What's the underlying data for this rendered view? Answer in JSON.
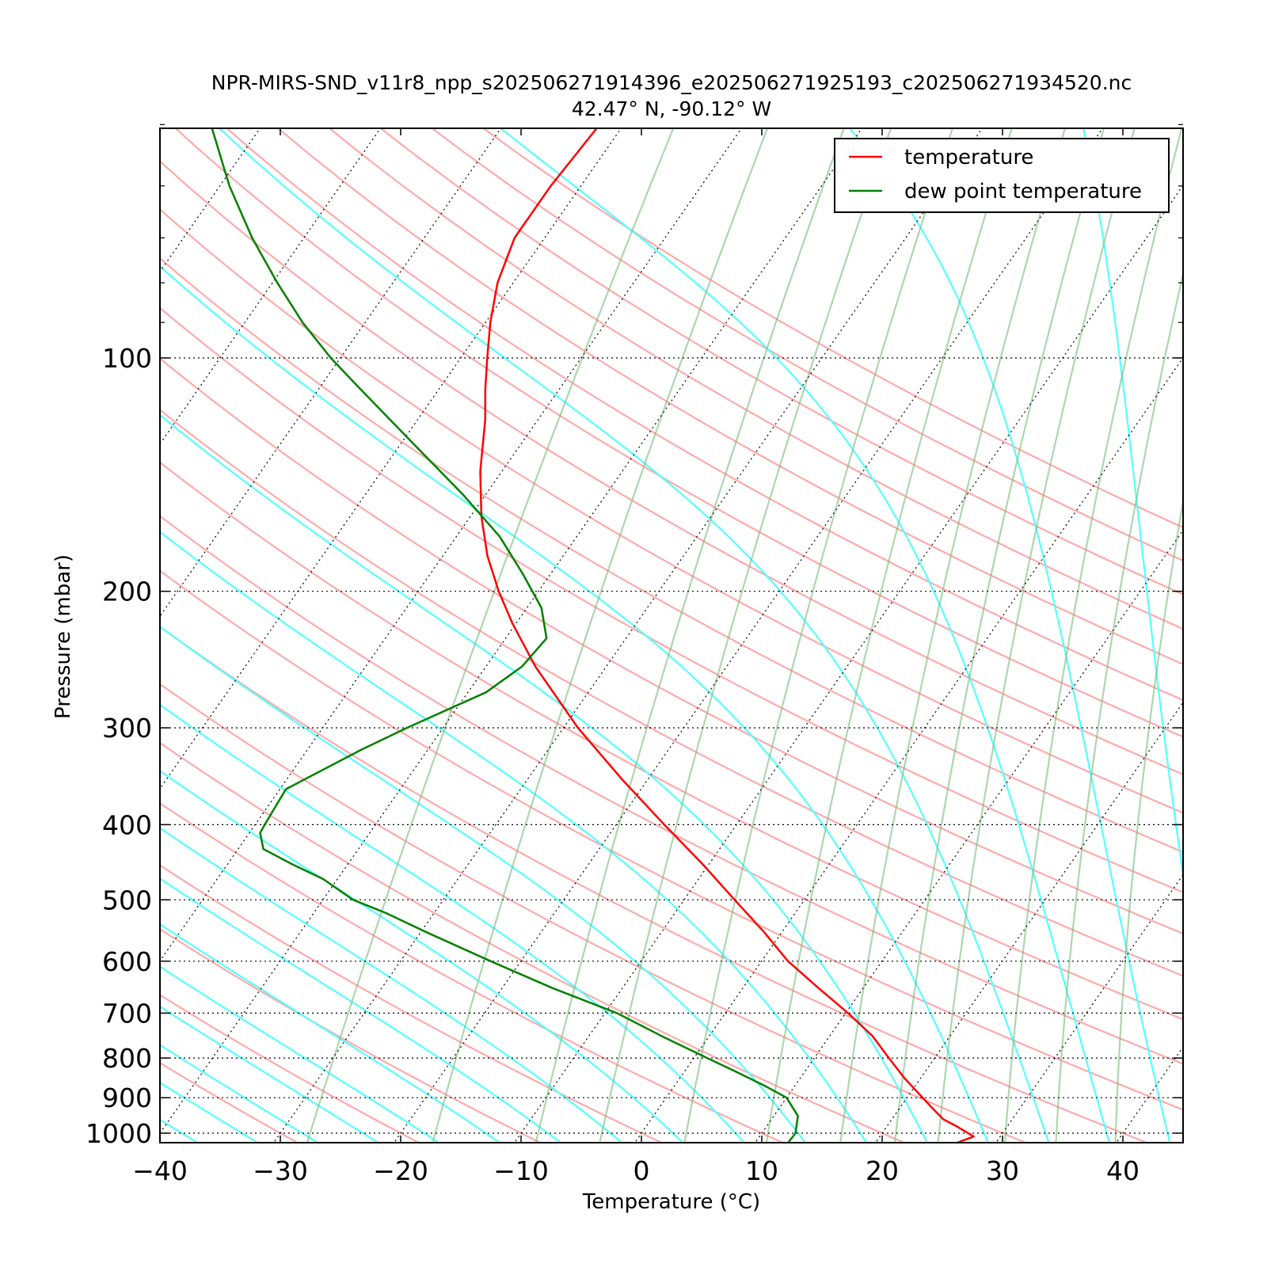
{
  "chart_data": {
    "type": "line",
    "title": "NPR-MIRS-SND_v11r8_npp_s202506271914396_e202506271925193_c202506271934520.nc",
    "subtitle": "42.47° N, -90.12° W",
    "xlabel": "Temperature (°C)",
    "ylabel": "Pressure (mbar)",
    "xlim": [
      -40,
      45
    ],
    "ylim": [
      1050,
      50
    ],
    "yscale": "log",
    "grid": true,
    "legend_position": "top-right",
    "x_ticks": [
      "−40",
      "−30",
      "−20",
      "−10",
      "0",
      "10",
      "20",
      "30",
      "40"
    ],
    "x_tick_values": [
      -40,
      -30,
      -20,
      -10,
      0,
      10,
      20,
      30,
      40
    ],
    "y_ticks": [
      "100",
      "200",
      "300",
      "400",
      "500",
      "600",
      "700",
      "800",
      "900",
      "1000"
    ],
    "y_tick_values": [
      100,
      200,
      300,
      400,
      500,
      600,
      700,
      800,
      900,
      1000
    ],
    "series": [
      {
        "name": "temperature",
        "color": "#ff0000",
        "points": [
          [
            1050,
            25.7
          ],
          [
            1010,
            27.8
          ],
          [
            980,
            25.8
          ],
          [
            960,
            24.3
          ],
          [
            930,
            22.8
          ],
          [
            900,
            21.3
          ],
          [
            850,
            18.7
          ],
          [
            800,
            16.2
          ],
          [
            750,
            13.6
          ],
          [
            700,
            10.2
          ],
          [
            650,
            6.3
          ],
          [
            600,
            2.2
          ],
          [
            550,
            -1.5
          ],
          [
            500,
            -5.8
          ],
          [
            450,
            -10.5
          ],
          [
            400,
            -16.0
          ],
          [
            350,
            -22.1
          ],
          [
            300,
            -28.8
          ],
          [
            250,
            -35.9
          ],
          [
            220,
            -40.3
          ],
          [
            200,
            -43.3
          ],
          [
            180,
            -46.3
          ],
          [
            160,
            -49.1
          ],
          [
            140,
            -51.8
          ],
          [
            120,
            -54.4
          ],
          [
            110,
            -56.1
          ],
          [
            100,
            -57.8
          ],
          [
            90,
            -59.6
          ],
          [
            80,
            -61.3
          ],
          [
            70,
            -62.5
          ],
          [
            60,
            -62.5
          ],
          [
            50,
            -62.0
          ]
        ]
      },
      {
        "name": "dew point temperature",
        "color": "#008000",
        "points": [
          [
            1050,
            12.7
          ],
          [
            1000,
            12.8
          ],
          [
            950,
            12.0
          ],
          [
            900,
            10.0
          ],
          [
            870,
            7.6
          ],
          [
            830,
            4.0
          ],
          [
            800,
            1.1
          ],
          [
            750,
            -3.9
          ],
          [
            700,
            -9.0
          ],
          [
            650,
            -15.8
          ],
          [
            600,
            -22.5
          ],
          [
            550,
            -29.6
          ],
          [
            520,
            -34.0
          ],
          [
            500,
            -37.5
          ],
          [
            470,
            -41.2
          ],
          [
            450,
            -44.6
          ],
          [
            430,
            -47.9
          ],
          [
            410,
            -49.1
          ],
          [
            400,
            -49.2
          ],
          [
            360,
            -49.5
          ],
          [
            320,
            -45.5
          ],
          [
            300,
            -43.0
          ],
          [
            270,
            -38.5
          ],
          [
            250,
            -37.0
          ],
          [
            230,
            -36.6
          ],
          [
            210,
            -38.8
          ],
          [
            190,
            -42.3
          ],
          [
            170,
            -46.4
          ],
          [
            150,
            -51.9
          ],
          [
            130,
            -58.6
          ],
          [
            110,
            -66.4
          ],
          [
            100,
            -70.8
          ],
          [
            90,
            -75.2
          ],
          [
            80,
            -79.6
          ],
          [
            70,
            -84.3
          ],
          [
            60,
            -89.2
          ],
          [
            50,
            -94.3
          ]
        ]
      }
    ],
    "background_lines": {
      "dry_adiabats_color": "#ffaaaa",
      "moist_adiabats_color": "#55ffff",
      "mixing_ratio_color": "#77bb77",
      "isotherm_color": "#000000"
    }
  }
}
